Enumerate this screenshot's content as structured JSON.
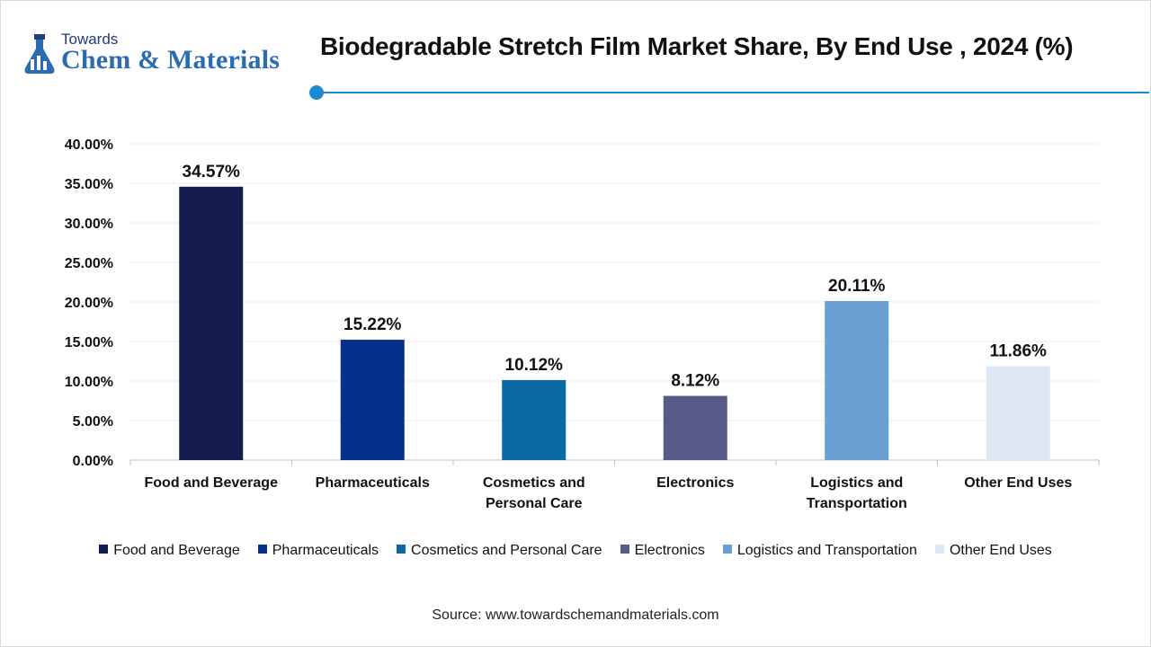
{
  "brand": {
    "towards": "Towards",
    "name": "Chem & Materials"
  },
  "chart_data": {
    "type": "bar",
    "title": "Biodegradable Stretch Film Market Share, By End Use , 2024 (%)",
    "categories": [
      "Food and Beverage",
      "Pharmaceuticals",
      "Cosmetics and Personal Care",
      "Electronics",
      "Logistics and Transportation",
      "Other End Uses"
    ],
    "category_lines": [
      [
        "Food and Beverage"
      ],
      [
        "Pharmaceuticals"
      ],
      [
        "Cosmetics and",
        "Personal Care"
      ],
      [
        "Electronics"
      ],
      [
        "Logistics and",
        "Transportation"
      ],
      [
        "Other End Uses"
      ]
    ],
    "values": [
      34.57,
      15.22,
      10.12,
      8.12,
      20.11,
      11.86
    ],
    "value_labels": [
      "34.57%",
      "15.22%",
      "10.12%",
      "8.12%",
      "20.11%",
      "11.86%"
    ],
    "colors": [
      "#131b4f",
      "#06318a",
      "#0a6aa3",
      "#575a86",
      "#699fd3",
      "#dde8f4"
    ],
    "ylim": [
      0,
      40
    ],
    "yticks": [
      "0.00%",
      "5.00%",
      "10.00%",
      "15.00%",
      "20.00%",
      "25.00%",
      "30.00%",
      "35.00%",
      "40.00%"
    ],
    "xlabel": "",
    "ylabel": "",
    "grid": true,
    "legend_position": "bottom"
  },
  "source": "Source: www.towardschemandmaterials.com"
}
